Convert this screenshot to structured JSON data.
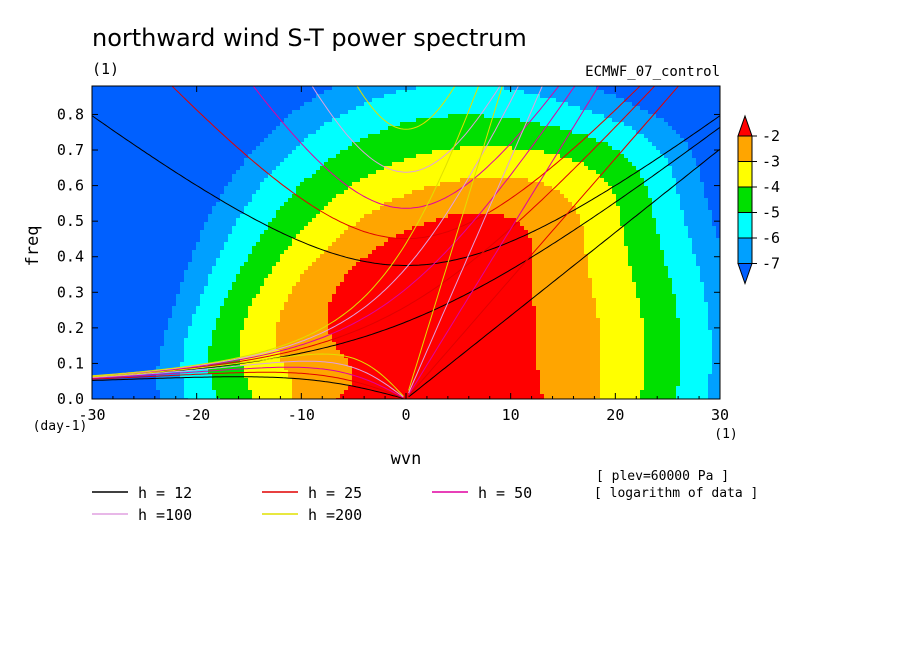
{
  "chart_data": {
    "type": "heatmap",
    "title": "northward wind S-T power spectrum",
    "subtitle_left": "(1)",
    "subtitle_right": "ECMWF_07_control",
    "xlabel": "wvn",
    "ylabel": "freq",
    "x_unit": "(1)",
    "y_unit": "(day-1)",
    "xlim": [
      -30,
      30
    ],
    "ylim": [
      0,
      0.88
    ],
    "x_ticks": [
      -30,
      -20,
      -10,
      0,
      10,
      20,
      30
    ],
    "x_tick_labels": [
      "-30",
      "-20",
      "-10",
      "0",
      "10",
      "20",
      "30"
    ],
    "y_ticks": [
      0,
      0.1,
      0.2,
      0.3,
      0.4,
      0.5,
      0.6,
      0.7,
      0.8
    ],
    "y_tick_labels": [
      "0.0",
      "0.1",
      "0.2",
      "0.3",
      "0.4",
      "0.5",
      "0.6",
      "0.7",
      "0.8"
    ],
    "levels": [
      -2,
      -3,
      -4,
      -5,
      -6,
      -7
    ],
    "level_labels": [
      "-2",
      "-3",
      "-4",
      "-5",
      "-6",
      "-7"
    ],
    "fill_colors": [
      "#ff0000",
      "#ffa500",
      "#ffff00",
      "#00e000",
      "#00ffff",
      "#00a0ff",
      "#0060ff"
    ],
    "field_model": {
      "peak_value": -1.6,
      "peak_wvn": 5,
      "peak_freq": 0.13,
      "wvn_scale": 11.5,
      "freq_scale": 0.36,
      "ridge_freq": 0.23,
      "ridge_tilt": 0.014,
      "ridge_width": 0.2,
      "ridge_gain": 0.9,
      "lowfreq_strength": 0.8,
      "lowfreq_decay": 0.05,
      "lowfreq_wvn_scale": 12
    },
    "annotations": [
      "[ plev=60000 Pa ]",
      "[ logarithm of data ]"
    ],
    "series": [
      {
        "name": "h = 12",
        "h": 12,
        "color": "#000000"
      },
      {
        "name": "h = 25",
        "h": 25,
        "color": "#e00000"
      },
      {
        "name": "h = 50",
        "h": 50,
        "color": "#e000a0"
      },
      {
        "name": "h =100",
        "h": 100,
        "color": "#e0a0e0"
      },
      {
        "name": "h =200",
        "h": 200,
        "color": "#e0e000"
      }
    ]
  }
}
